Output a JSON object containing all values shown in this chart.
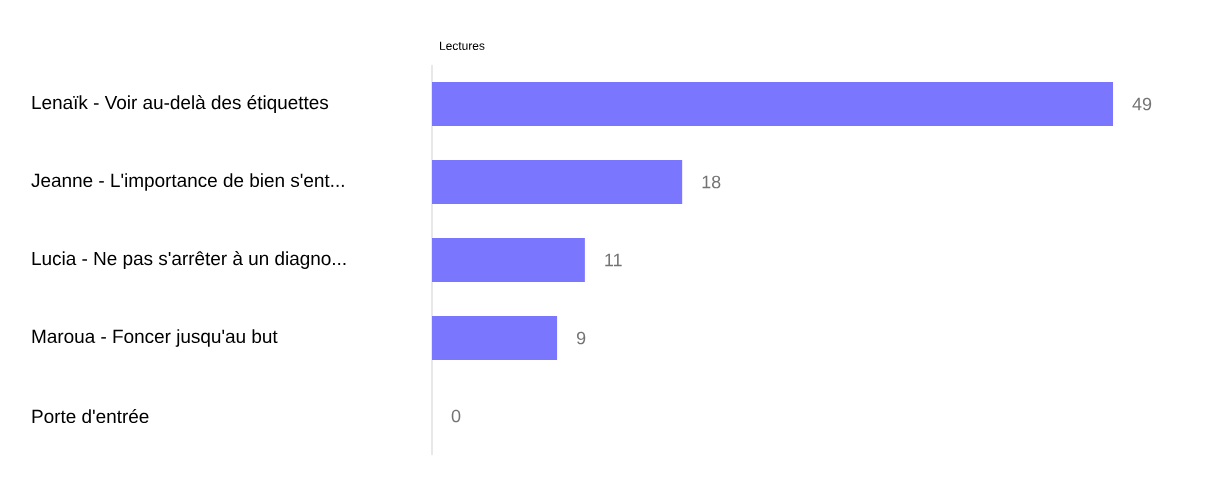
{
  "chart_data": {
    "type": "bar",
    "orientation": "horizontal",
    "xlabel": "Lectures",
    "categories": [
      "Lenaïk - Voir au-delà des étiquettes",
      "Jeanne - L'importance de bien s'ent...",
      "Lucia - Ne pas s'arrêter à un diagno...",
      "Maroua - Foncer jusqu'au but",
      "Porte d'entrée"
    ],
    "values": [
      49,
      18,
      11,
      9,
      0
    ],
    "color": "#7b76fe",
    "data_labels": true
  }
}
